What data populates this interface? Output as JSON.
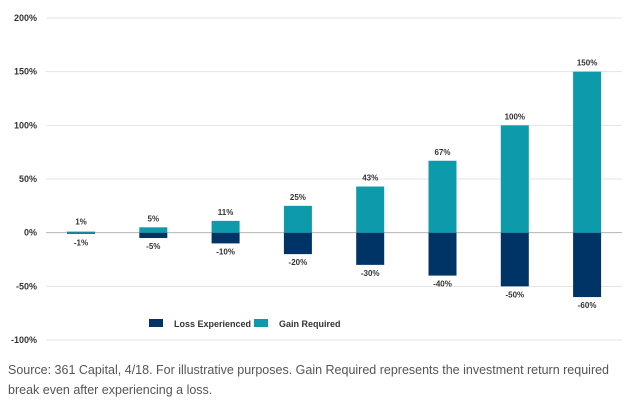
{
  "chart_data": {
    "type": "bar",
    "categories": [
      "",
      "",
      "",
      "",
      "",
      "",
      "",
      ""
    ],
    "series": [
      {
        "name": "Loss Experienced",
        "values": [
          -1,
          -5,
          -10,
          -20,
          -30,
          -40,
          -50,
          -60
        ],
        "labels": [
          "-1%",
          "-5%",
          "-10%",
          "-20%",
          "-30%",
          "-40%",
          "-50%",
          "-60%"
        ]
      },
      {
        "name": "Gain Required",
        "values": [
          1,
          5,
          11,
          25,
          43,
          67,
          100,
          150
        ],
        "labels": [
          "1%",
          "5%",
          "11%",
          "25%",
          "43%",
          "67%",
          "100%",
          "150%"
        ]
      }
    ],
    "yticks": [
      200,
      150,
      100,
      50,
      0,
      -50,
      -100
    ],
    "ytick_labels": [
      "200%",
      "150%",
      "100%",
      "50%",
      "0%",
      "-50%",
      "-100%"
    ],
    "ylim": [
      -100,
      200
    ],
    "grid": true,
    "legend_position": "bottom-center",
    "colors": {
      "Loss Experienced": "#003366",
      "Gain Required": "#0d9bab",
      "grid": "#e3e3e3",
      "axis": "#b5b5b5"
    }
  },
  "source_note": "Source: 361 Capital, 4/18. For illustrative purposes. Gain Required represents the investment return required break even after experiencing a loss."
}
